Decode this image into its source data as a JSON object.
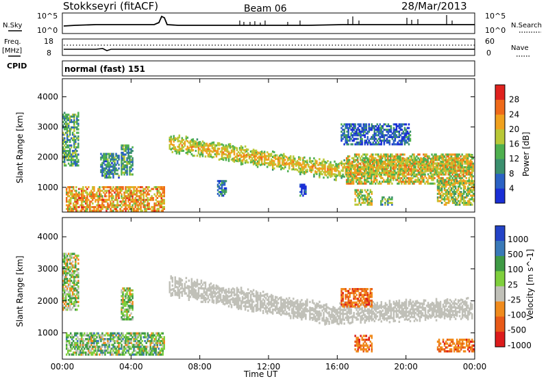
{
  "header": {
    "station": "Stokkseyri (fitACF)",
    "beam": "Beam 06",
    "date": "28/Mar/2013"
  },
  "params": {
    "nsky_label": "N.Sky",
    "nsearch_label": "N.Search",
    "nsky_ticks": [
      "10^5",
      "10^0"
    ],
    "nsearch_ticks": [
      "10^5",
      "10^0"
    ],
    "freq_label": "Freq.",
    "freq_unit": "[MHz]",
    "freq_ticks": [
      "18",
      "8"
    ],
    "nave_label": "Nave",
    "nave_ticks": [
      "60",
      "0"
    ],
    "cpid_label": "CPID",
    "cpid_value": "normal (fast) 151"
  },
  "colors": {
    "power": [
      "#1a2fd6",
      "#2b62c4",
      "#3b8f6e",
      "#4fb04f",
      "#b9c837",
      "#f0a11e",
      "#ef6a1a",
      "#e0221e"
    ],
    "velocity": [
      "#2343c7",
      "#3a7ab8",
      "#3f9a45",
      "#7fcf3d",
      "#c0c0b8",
      "#f08b1d",
      "#e85a18",
      "#dd1c1c"
    ]
  },
  "chart_data": [
    {
      "type": "heatmap",
      "name": "power",
      "ylabel": "Slant Range [km]",
      "xlabel": "Time UT",
      "x_ticks": [
        "00:00",
        "04:00",
        "08:00",
        "12:00",
        "16:00",
        "20:00",
        "00:00"
      ],
      "xlim_hours": [
        0,
        24
      ],
      "y_ticks": [
        1000,
        2000,
        3000,
        4000
      ],
      "ylim": [
        180,
        4600
      ],
      "colorbar": {
        "label": "Power [dB]",
        "ticks": [
          4,
          8,
          12,
          16,
          20,
          24,
          28
        ],
        "range": [
          0,
          32
        ]
      },
      "regions": [
        {
          "t": [
            0.2,
            5.9
          ],
          "r": [
            200,
            1000
          ],
          "v": 22
        },
        {
          "t": [
            0.0,
            0.9
          ],
          "r": [
            1700,
            3500
          ],
          "v": 12
        },
        {
          "t": [
            2.2,
            3.3
          ],
          "r": [
            1300,
            2100
          ],
          "v": 10
        },
        {
          "t": [
            3.4,
            4.1
          ],
          "r": [
            1400,
            2400
          ],
          "v": 12
        },
        {
          "t": [
            6.2,
            23.8
          ],
          "r": [
            1300,
            2600
          ],
          "v": 14,
          "band": "curve"
        },
        {
          "t": [
            16.5,
            23.9
          ],
          "r": [
            1100,
            2100
          ],
          "v": 19
        },
        {
          "t": [
            16.2,
            20.2
          ],
          "r": [
            2400,
            3100
          ],
          "v": 6
        },
        {
          "t": [
            17.0,
            18.0
          ],
          "r": [
            400,
            900
          ],
          "v": 18
        },
        {
          "t": [
            18.5,
            19.2
          ],
          "r": [
            400,
            700
          ],
          "v": 14
        },
        {
          "t": [
            21.8,
            23.9
          ],
          "r": [
            400,
            1200
          ],
          "v": 17
        },
        {
          "t": [
            9.0,
            9.5
          ],
          "r": [
            700,
            1200
          ],
          "v": 8
        },
        {
          "t": [
            13.8,
            14.2
          ],
          "r": [
            700,
            1100
          ],
          "v": 6
        }
      ]
    },
    {
      "type": "heatmap",
      "name": "velocity",
      "ylabel": "Slant Range [km]",
      "xlabel": "Time UT",
      "x_ticks": [
        "00:00",
        "04:00",
        "08:00",
        "12:00",
        "16:00",
        "20:00",
        "00:00"
      ],
      "xlim_hours": [
        0,
        24
      ],
      "y_ticks": [
        1000,
        2000,
        3000,
        4000
      ],
      "ylim": [
        180,
        4600
      ],
      "colorbar": {
        "label": "Velocity [m s^-1]",
        "ticks": [
          "1000",
          "500",
          "100",
          "25",
          "-25",
          "-100",
          "-500",
          "-1000"
        ]
      },
      "regions": [
        {
          "t": [
            0.2,
            5.9
          ],
          "r": [
            300,
            1000
          ],
          "v": "mixed-green"
        },
        {
          "t": [
            6.2,
            23.8
          ],
          "r": [
            1300,
            2600
          ],
          "v": "ground"
        },
        {
          "t": [
            16.2,
            18.0
          ],
          "r": [
            1800,
            2400
          ],
          "v": "-250"
        },
        {
          "t": [
            17.0,
            18.0
          ],
          "r": [
            400,
            900
          ],
          "v": "-300"
        },
        {
          "t": [
            21.8,
            23.9
          ],
          "r": [
            400,
            800
          ],
          "v": "-200"
        },
        {
          "t": [
            0.0,
            0.9
          ],
          "r": [
            1700,
            3500
          ],
          "v": "mixed"
        },
        {
          "t": [
            3.4,
            4.1
          ],
          "r": [
            1400,
            2400
          ],
          "v": "mixed"
        }
      ]
    }
  ]
}
